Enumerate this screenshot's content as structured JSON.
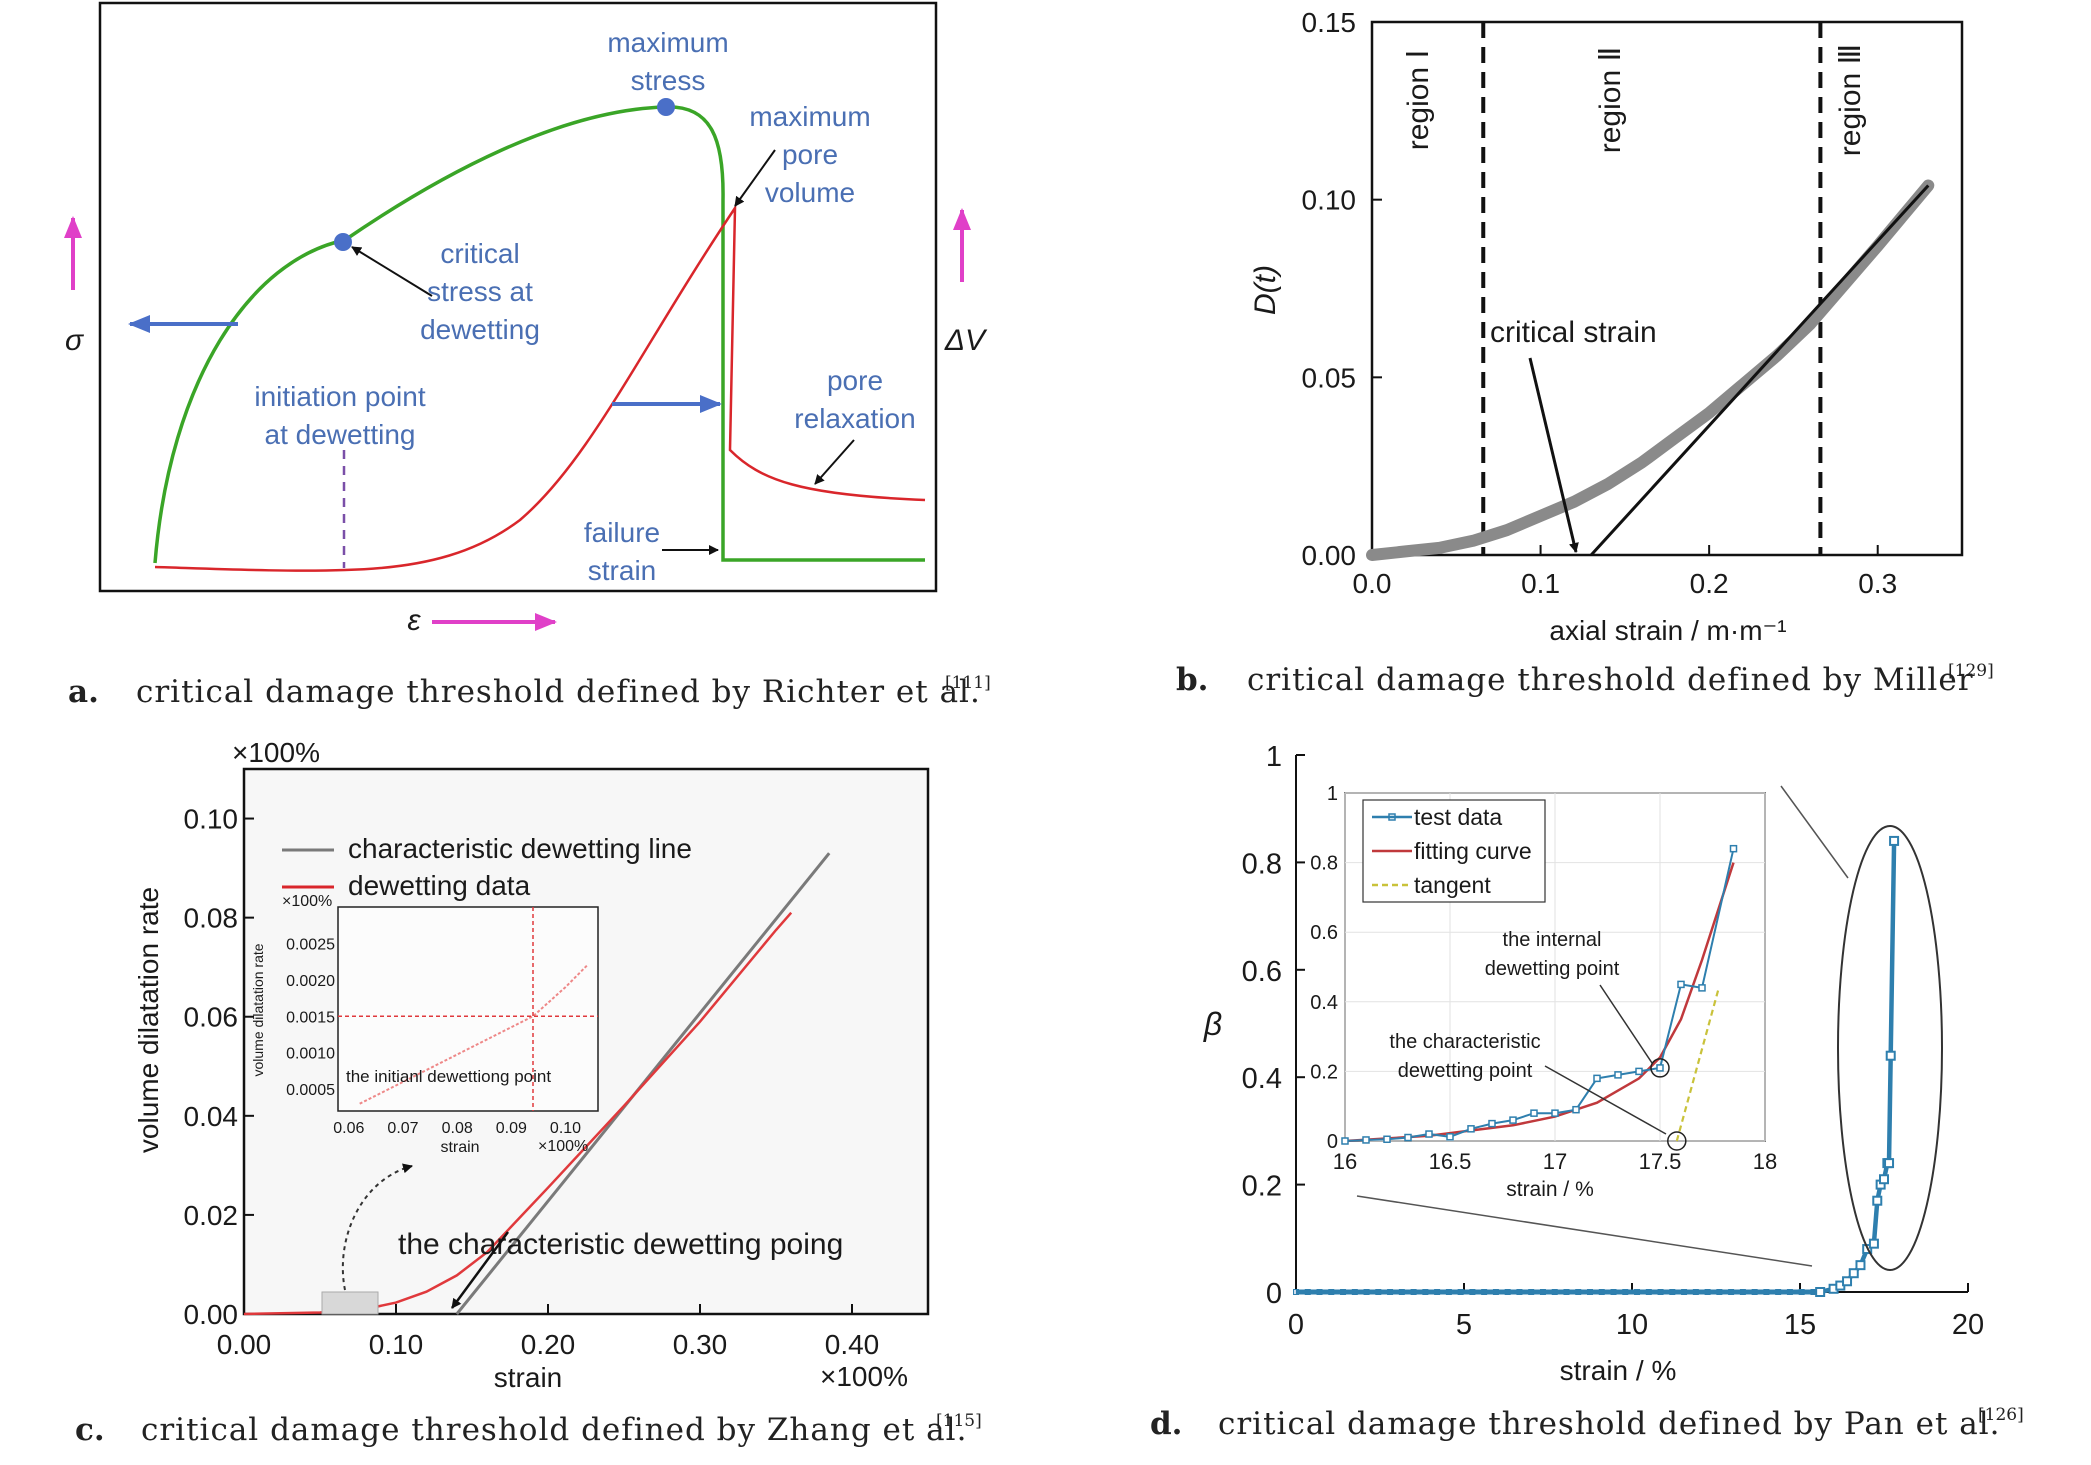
{
  "colors": {
    "green": "#3aa527",
    "red": "#d9262b",
    "blue_text": "#4a6fb3",
    "magenta": "#e040c8",
    "arrow_blue": "#4a6fc8",
    "teal": "#2e7fae",
    "gray": "#8a8a8a"
  },
  "captions": [
    {
      "letter": "a.",
      "text": "critical damage threshold defined by Richter et al.",
      "ref": "[111]"
    },
    {
      "letter": "b.",
      "text": "critical damage threshold defined by Miller",
      "ref": "[129]"
    },
    {
      "letter": "c.",
      "text": "critical damage threshold defined by Zhang et al.",
      "ref": "[115]"
    },
    {
      "letter": "d.",
      "text": "critical damage threshold defined by Pan et al.",
      "ref": "[126]"
    }
  ],
  "panel_a": {
    "sigma_label": "σ",
    "eps_label": "ε",
    "dv_label": "ΔV",
    "ann": {
      "max_stress_1": "maximum",
      "max_stress_2": "stress",
      "max_pore_1": "maximum",
      "max_pore_2": "pore",
      "max_pore_3": "volume",
      "crit_1": "critical",
      "crit_2": "stress at",
      "crit_3": "dewetting",
      "init_1": "initiation point",
      "init_2": "at dewetting",
      "relax_1": "pore",
      "relax_2": "relaxation",
      "fail_1": "failure",
      "fail_2": "strain"
    }
  },
  "chart_data": [
    {
      "type": "line",
      "panel": "a",
      "series": [
        {
          "color": "green"
        },
        {
          "color": "red"
        }
      ]
    },
    {
      "type": "line",
      "panel": "b",
      "xlabel": "axial strain / m·m⁻¹",
      "ylabel": "D(t)",
      "xlim": [
        0,
        0.35
      ],
      "ylim": [
        0,
        0.15
      ],
      "xticks": [
        "0.0",
        "0.1",
        "0.2",
        "0.3"
      ],
      "yticks": [
        "0.00",
        "0.05",
        "0.10",
        "0.15"
      ],
      "regions": [
        "region Ⅰ",
        "region Ⅱ",
        "region Ⅲ"
      ],
      "region_lines": [
        0.066,
        0.266
      ],
      "annotation": "critical strain",
      "critical_strain": 0.13,
      "data_x": [
        0.0,
        0.02,
        0.04,
        0.06,
        0.08,
        0.1,
        0.12,
        0.14,
        0.16,
        0.18,
        0.2,
        0.22,
        0.24,
        0.26,
        0.28,
        0.3,
        0.33
      ],
      "data_y": [
        0.0,
        0.001,
        0.002,
        0.004,
        0.007,
        0.011,
        0.015,
        0.02,
        0.026,
        0.033,
        0.04,
        0.048,
        0.056,
        0.065,
        0.076,
        0.087,
        0.104
      ],
      "tangent": [
        [
          0.13,
          0.0
        ],
        [
          0.33,
          0.104
        ]
      ]
    },
    {
      "type": "line",
      "panel": "c",
      "xlabel": "strain",
      "ylabel": "volume dilatation rate",
      "x_unit": "×100%",
      "y_unit": "×100%",
      "xlim": [
        0,
        0.45
      ],
      "ylim": [
        0,
        0.11
      ],
      "xticks": [
        "0.00",
        "0.10",
        "0.20",
        "0.30",
        "0.40"
      ],
      "yticks": [
        "0.00",
        "0.02",
        "0.04",
        "0.06",
        "0.08",
        "0.10"
      ],
      "legend": [
        "characteristic dewetting line",
        "dewetting data"
      ],
      "annotation": "the characteristic dewetting poing",
      "data_x": [
        0.0,
        0.05,
        0.08,
        0.1,
        0.12,
        0.14,
        0.16,
        0.18,
        0.2,
        0.25,
        0.3,
        0.35,
        0.36
      ],
      "data_y": [
        0.0,
        0.0003,
        0.001,
        0.0023,
        0.0045,
        0.0078,
        0.0125,
        0.019,
        0.0255,
        0.042,
        0.059,
        0.0775,
        0.081
      ],
      "line": [
        [
          0.14,
          0.0
        ],
        [
          0.385,
          0.093
        ]
      ],
      "inset": {
        "x_unit": "×100%",
        "y_unit": "×100%",
        "ylabel": "volume dilatation rate",
        "xlabel": "strain",
        "xticks": [
          "0.06",
          "0.07",
          "0.08",
          "0.09",
          "0.10"
        ],
        "yticks": [
          "0.0005",
          "0.0010",
          "0.0015",
          "0.0020",
          "0.0025"
        ],
        "annotation": "the initianl dewettiong point",
        "point": [
          0.094,
          0.0015
        ],
        "data_x": [
          0.062,
          0.07,
          0.078,
          0.086,
          0.094,
          0.1,
          0.104
        ],
        "data_y": [
          0.0003,
          0.0006,
          0.0009,
          0.0012,
          0.0015,
          0.0019,
          0.0022
        ]
      }
    },
    {
      "type": "line",
      "panel": "d",
      "xlabel": "strain / %",
      "ylabel": "β",
      "xlim": [
        0,
        20
      ],
      "ylim": [
        0,
        1
      ],
      "xticks": [
        "0",
        "5",
        "10",
        "15",
        "20"
      ],
      "yticks": [
        "0",
        "0.2",
        "0.4",
        "0.6",
        "0.8",
        "1"
      ],
      "data_x": [
        0,
        15.6,
        16.0,
        16.2,
        16.4,
        16.6,
        16.8,
        17.0,
        17.2,
        17.3,
        17.4,
        17.5,
        17.6,
        17.65,
        17.7,
        17.8
      ],
      "data_y": [
        0,
        0.0,
        0.006,
        0.012,
        0.02,
        0.035,
        0.05,
        0.08,
        0.09,
        0.17,
        0.2,
        0.21,
        0.24,
        0.24,
        0.44,
        0.84
      ],
      "inset": {
        "xlabel": "strain / %",
        "xlim": [
          16,
          18
        ],
        "ylim": [
          0,
          1
        ],
        "xticks": [
          "16",
          "16.5",
          "17",
          "17.5",
          "18"
        ],
        "yticks": [
          "0",
          "0.2",
          "0.4",
          "0.6",
          "0.8",
          "1"
        ],
        "legend": [
          "test data",
          "fitting curve",
          "tangent"
        ],
        "annotation_1": [
          "the internal",
          "dewetting point"
        ],
        "annotation_2": [
          "the characteristic",
          "dewetting point"
        ],
        "test_x": [
          16.0,
          16.1,
          16.2,
          16.3,
          16.4,
          16.5,
          16.6,
          16.7,
          16.8,
          16.9,
          17.0,
          17.1,
          17.2,
          17.3,
          17.4,
          17.5,
          17.6,
          17.7,
          17.85
        ],
        "test_y": [
          0.0,
          0.003,
          0.005,
          0.01,
          0.02,
          0.012,
          0.035,
          0.05,
          0.06,
          0.08,
          0.08,
          0.09,
          0.18,
          0.19,
          0.2,
          0.21,
          0.45,
          0.44,
          0.84
        ],
        "fit_x": [
          16.0,
          16.4,
          16.8,
          17.0,
          17.2,
          17.4,
          17.5,
          17.6,
          17.7,
          17.85
        ],
        "fit_y": [
          0.0,
          0.015,
          0.045,
          0.07,
          0.11,
          0.18,
          0.24,
          0.35,
          0.52,
          0.8
        ],
        "tangent": [
          [
            17.58,
            0.0
          ],
          [
            17.78,
            0.44
          ]
        ],
        "internal_point": [
          17.5,
          0.21
        ],
        "char_point": [
          17.58,
          0.0
        ]
      }
    }
  ]
}
